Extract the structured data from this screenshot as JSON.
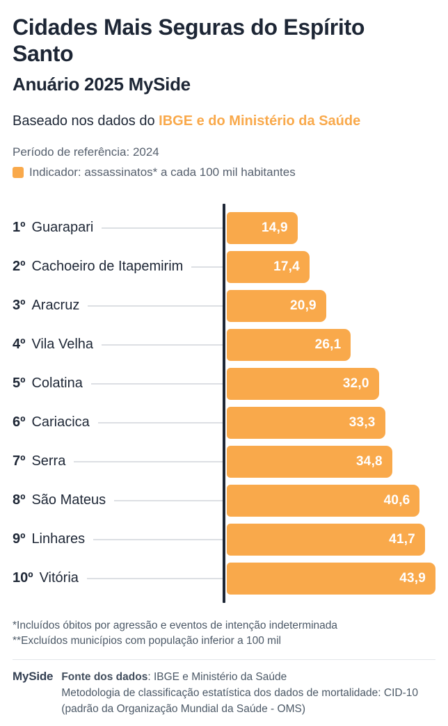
{
  "header": {
    "title": "Cidades Mais Seguras do Espírito Santo",
    "subtitle": "Anuário 2025 MySide",
    "based_prefix": "Baseado nos dados do ",
    "based_highlight": "IBGE e do Ministério da Saúde",
    "period": "Período de referência: 2024",
    "legend_label": "Indicador: assassinatos* a cada 100 mil habitantes"
  },
  "colors": {
    "accent_orange": "#f9a94b",
    "title_navy": "#1d2635",
    "muted_slate": "#4b5866",
    "leader_gray": "#dcdfe3"
  },
  "chart_data": {
    "type": "bar",
    "orientation": "horizontal",
    "title": "Cidades Mais Seguras do Espírito Santo — Anuário 2025 MySide",
    "xlabel": "assassinatos a cada 100 mil habitantes",
    "ylabel": "",
    "xlim": [
      0,
      43.9
    ],
    "grid": false,
    "legend_position": "top-left",
    "ranks": [
      "1º",
      "2º",
      "3º",
      "4º",
      "5º",
      "6º",
      "7º",
      "8º",
      "9º",
      "10º"
    ],
    "categories": [
      "Guarapari",
      "Cachoeiro de Itapemirim",
      "Aracruz",
      "Vila Velha",
      "Colatina",
      "Cariacica",
      "Serra",
      "São Mateus",
      "Linhares",
      "Vitória"
    ],
    "values": [
      14.9,
      17.4,
      20.9,
      26.1,
      32.0,
      33.3,
      34.8,
      40.6,
      41.7,
      43.9
    ],
    "value_labels": [
      "14,9",
      "17,4",
      "20,9",
      "26,1",
      "32,0",
      "33,3",
      "34,8",
      "40,6",
      "41,7",
      "43,9"
    ]
  },
  "footnotes": {
    "line1": "*Incluídos óbitos por agressão e eventos de intenção indeterminada",
    "line2": "**Excluídos municípios com população inferior a 100 mil"
  },
  "footer": {
    "logo": "MySide",
    "source_label": "Fonte dos dados",
    "source_value": ": IBGE e Ministério da Saúde",
    "methodology_line1": "Metodologia de classificação estatística dos dados de mortalidade: CID-10",
    "methodology_line2": "(padrão da Organização Mundial da Saúde - OMS)"
  }
}
